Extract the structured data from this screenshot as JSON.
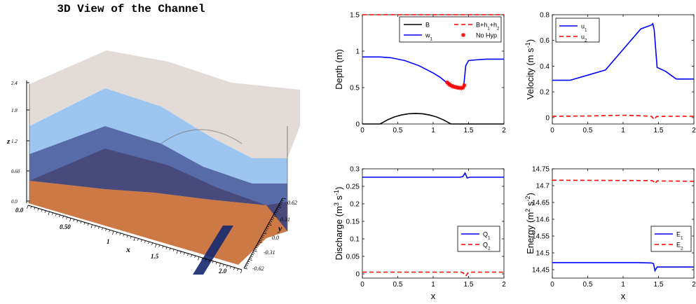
{
  "colors": {
    "blue": "#0000ff",
    "red": "#ff0000",
    "black": "#000000",
    "bed": "#c86a32",
    "lower_layer": "#1f3a8c",
    "upper_layer": "#5aa0e6",
    "surface_top": "#d8cfc9"
  },
  "view3d": {
    "title": "3D View of the Channel",
    "z_label": "z",
    "x_label": "x",
    "y_label": "y",
    "z_ticks": [
      "2.4",
      "1.8",
      "1.2",
      "0.60",
      "0.0"
    ],
    "x_ticks": [
      "0.0",
      "0.50",
      "1",
      "1.5",
      "2.0"
    ],
    "y_ticks": [
      "0.62",
      "0.31",
      "0.0",
      "-0.31",
      "-0.62"
    ]
  },
  "chart_data": [
    {
      "type": "line",
      "ylabel": "Depth (m)",
      "xlabel": "",
      "xlim": [
        0,
        2
      ],
      "ylim": [
        0,
        1.5
      ],
      "xticks": [
        "0",
        "0.5",
        "1",
        "1.5",
        "2"
      ],
      "yticks": [
        "0",
        "0.5",
        "1",
        "1.5"
      ],
      "legend_position": "top-right",
      "legend_labels": [
        "B",
        "B+h₁+h₂",
        "w₁",
        "No Hyp"
      ],
      "series": [
        {
          "name": "B",
          "color": "#000000",
          "style": "solid",
          "x": [
            0,
            0.25,
            0.35,
            0.45,
            0.55,
            0.65,
            0.75,
            0.85,
            0.95,
            1.05,
            1.15,
            1.25,
            2.0
          ],
          "y": [
            0,
            0,
            0.055,
            0.096,
            0.123,
            0.14,
            0.145,
            0.14,
            0.123,
            0.096,
            0.055,
            0,
            0
          ]
        },
        {
          "name": "B+h₁+h₂",
          "color": "#ff0000",
          "style": "dashed",
          "x": [
            0,
            2
          ],
          "y": [
            1.5,
            1.5
          ]
        },
        {
          "name": "w₁",
          "color": "#0000ff",
          "style": "solid",
          "x": [
            0,
            0.25,
            0.4,
            0.6,
            0.8,
            1.0,
            1.1,
            1.2,
            1.3,
            1.4,
            1.43,
            1.46,
            1.5,
            1.6,
            1.75,
            2.0
          ],
          "y": [
            0.92,
            0.92,
            0.91,
            0.87,
            0.8,
            0.7,
            0.64,
            0.56,
            0.51,
            0.49,
            0.5,
            0.8,
            0.87,
            0.88,
            0.89,
            0.89
          ]
        },
        {
          "name": "No Hyp",
          "color": "#ff0000",
          "style": "markers",
          "x": [
            1.2,
            1.22,
            1.24,
            1.26,
            1.28,
            1.3,
            1.32,
            1.34,
            1.36,
            1.38,
            1.4,
            1.42,
            1.44
          ],
          "y": [
            0.57,
            0.55,
            0.535,
            0.525,
            0.515,
            0.51,
            0.505,
            0.5,
            0.497,
            0.495,
            0.493,
            0.5,
            0.53
          ]
        }
      ]
    },
    {
      "type": "line",
      "ylabel": "Velocity (m s⁻¹)",
      "xlabel": "",
      "xlim": [
        0,
        2
      ],
      "ylim": [
        -0.05,
        0.8
      ],
      "xticks": [
        "0",
        "0.5",
        "1",
        "1.5",
        "2"
      ],
      "yticks": [
        "0",
        "0.2",
        "0.4",
        "0.6",
        "0.8"
      ],
      "legend_position": "top-left",
      "legend_labels": [
        "u₁",
        "u₂"
      ],
      "series": [
        {
          "name": "u₁",
          "color": "#0000ff",
          "style": "solid",
          "x": [
            0,
            0.25,
            0.5,
            0.75,
            1.0,
            1.25,
            1.4,
            1.42,
            1.44,
            1.48,
            1.6,
            1.75,
            2.0
          ],
          "y": [
            0.29,
            0.29,
            0.33,
            0.37,
            0.53,
            0.69,
            0.72,
            0.73,
            0.68,
            0.39,
            0.36,
            0.3,
            0.3
          ]
        },
        {
          "name": "u₂",
          "color": "#ff0000",
          "style": "dashed",
          "x": [
            0,
            0.5,
            0.75,
            1.0,
            1.2,
            1.4,
            1.44,
            1.47,
            1.6,
            2.0
          ],
          "y": [
            0.01,
            0.012,
            0.015,
            0.018,
            0.015,
            0.01,
            -0.015,
            0.008,
            0.01,
            0.01
          ]
        }
      ]
    },
    {
      "type": "line",
      "ylabel": "Discharge (m³ s⁻¹)",
      "xlabel": "x",
      "xlim": [
        0,
        2
      ],
      "ylim": [
        -0.012,
        0.3
      ],
      "xticks": [
        "0",
        "0.5",
        "1",
        "1.5",
        "2"
      ],
      "yticks": [
        "0",
        "0.05",
        "0.1",
        "0.15",
        "0.2",
        "0.25",
        "0.3"
      ],
      "legend_position": "right",
      "legend_labels": [
        "Q₁",
        "Q₂"
      ],
      "series": [
        {
          "name": "Q₁",
          "color": "#0000ff",
          "style": "solid",
          "x": [
            0,
            1.2,
            1.38,
            1.42,
            1.45,
            1.48,
            1.52,
            2.0
          ],
          "y": [
            0.276,
            0.276,
            0.276,
            0.278,
            0.288,
            0.274,
            0.276,
            0.276
          ]
        },
        {
          "name": "Q₂",
          "color": "#ff0000",
          "style": "dashed",
          "x": [
            0,
            1.4,
            1.43,
            1.46,
            1.5,
            2.0
          ],
          "y": [
            0.005,
            0.005,
            0.002,
            -0.006,
            0.005,
            0.005
          ]
        }
      ]
    },
    {
      "type": "line",
      "ylabel": "Energy (m² s⁻²)",
      "xlabel": "x",
      "xlim": [
        0,
        2
      ],
      "ylim": [
        14.425,
        14.75
      ],
      "xticks": [
        "0",
        "0.5",
        "1",
        "1.5",
        "2"
      ],
      "yticks": [
        "14.45",
        "14.5",
        "14.55",
        "14.6",
        "14.65",
        "14.7",
        "14.75"
      ],
      "legend_position": "right",
      "legend_labels": [
        "E₁",
        "E₂"
      ],
      "series": [
        {
          "name": "E₁",
          "color": "#0000ff",
          "style": "solid",
          "x": [
            0,
            1.2,
            1.4,
            1.43,
            1.45,
            1.48,
            1.55,
            2.0
          ],
          "y": [
            14.471,
            14.471,
            14.47,
            14.468,
            14.447,
            14.458,
            14.458,
            14.458
          ]
        },
        {
          "name": "E₂",
          "color": "#ff0000",
          "style": "dashed",
          "x": [
            0,
            1.4,
            1.43,
            1.45,
            1.48,
            2.0
          ],
          "y": [
            14.716,
            14.715,
            14.713,
            14.706,
            14.714,
            14.713
          ]
        }
      ]
    }
  ]
}
